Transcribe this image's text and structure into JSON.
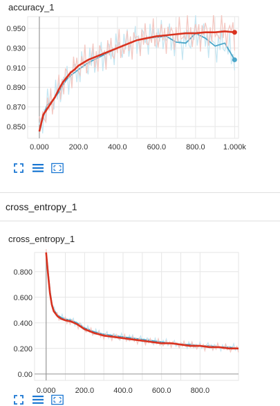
{
  "charts": [
    {
      "title": "accuracy_1"
    },
    {
      "title": "cross_entropy_1"
    }
  ],
  "section": {
    "title": "cross_entropy_1"
  },
  "toolbar": {
    "icons": [
      "fit-domain-icon",
      "data-table-icon",
      "expand-chart-icon"
    ]
  },
  "colors": {
    "blue": "#4aa6c9",
    "red": "#d9321f",
    "blue_light": "#bfe3f1",
    "red_light": "#f3c2bb",
    "grid": "#e6e6e6",
    "axis": "#999999"
  },
  "chart_data": [
    {
      "type": "line",
      "title": "accuracy_1",
      "xlabel": "",
      "ylabel": "",
      "x_ticks": [
        "0.000",
        "200.0",
        "400.0",
        "600.0",
        "800.0",
        "1.000k"
      ],
      "y_ticks": [
        "0.850",
        "0.870",
        "0.890",
        "0.910",
        "0.930",
        "0.950"
      ],
      "xlim": [
        -60,
        1020
      ],
      "ylim": [
        0.838,
        0.962
      ],
      "grid": true,
      "series": [
        {
          "color": "blue",
          "x": [
            0,
            20,
            40,
            60,
            80,
            100,
            120,
            140,
            160,
            180,
            200,
            250,
            300,
            350,
            400,
            450,
            500,
            550,
            600,
            650,
            700,
            750,
            800,
            850,
            900,
            950,
            1000
          ],
          "y": [
            0.845,
            0.86,
            0.872,
            0.875,
            0.88,
            0.885,
            0.892,
            0.898,
            0.902,
            0.905,
            0.908,
            0.915,
            0.92,
            0.925,
            0.93,
            0.934,
            0.938,
            0.94,
            0.941,
            0.942,
            0.936,
            0.935,
            0.945,
            0.94,
            0.932,
            0.935,
            0.918
          ]
        },
        {
          "color": "red",
          "x": [
            0,
            20,
            40,
            60,
            80,
            100,
            120,
            140,
            160,
            180,
            200,
            250,
            300,
            350,
            400,
            450,
            500,
            550,
            600,
            650,
            700,
            750,
            800,
            850,
            900,
            950,
            1000
          ],
          "y": [
            0.845,
            0.862,
            0.868,
            0.874,
            0.88,
            0.888,
            0.895,
            0.9,
            0.905,
            0.908,
            0.912,
            0.918,
            0.922,
            0.926,
            0.93,
            0.934,
            0.938,
            0.94,
            0.942,
            0.943,
            0.944,
            0.945,
            0.945,
            0.946,
            0.946,
            0.947,
            0.946
          ]
        }
      ]
    },
    {
      "type": "line",
      "title": "cross_entropy_1",
      "xlabel": "",
      "ylabel": "",
      "x_ticks": [
        "0.000",
        "200.0",
        "400.0",
        "600.0",
        "800.0"
      ],
      "y_ticks": [
        "0.00",
        "0.200",
        "0.400",
        "0.600",
        "0.800"
      ],
      "xlim": [
        -60,
        1000
      ],
      "ylim": [
        -0.05,
        0.95
      ],
      "grid": true,
      "series": [
        {
          "color": "blue",
          "x": [
            0,
            10,
            20,
            30,
            40,
            60,
            80,
            100,
            130,
            160,
            200,
            250,
            300,
            350,
            400,
            450,
            500,
            550,
            600,
            650,
            700,
            750,
            800,
            850,
            900,
            950,
            1000
          ],
          "y": [
            0.95,
            0.8,
            0.65,
            0.55,
            0.5,
            0.46,
            0.44,
            0.43,
            0.42,
            0.4,
            0.36,
            0.33,
            0.31,
            0.3,
            0.29,
            0.28,
            0.27,
            0.26,
            0.25,
            0.24,
            0.23,
            0.23,
            0.22,
            0.22,
            0.21,
            0.21,
            0.2
          ]
        },
        {
          "color": "red",
          "x": [
            0,
            10,
            20,
            30,
            40,
            60,
            80,
            100,
            130,
            160,
            200,
            250,
            300,
            350,
            400,
            450,
            500,
            550,
            600,
            650,
            700,
            750,
            800,
            850,
            900,
            950,
            1000
          ],
          "y": [
            0.95,
            0.78,
            0.63,
            0.54,
            0.49,
            0.45,
            0.43,
            0.42,
            0.41,
            0.39,
            0.35,
            0.32,
            0.3,
            0.29,
            0.28,
            0.27,
            0.26,
            0.25,
            0.24,
            0.24,
            0.23,
            0.22,
            0.22,
            0.21,
            0.21,
            0.2,
            0.2
          ]
        }
      ]
    }
  ]
}
